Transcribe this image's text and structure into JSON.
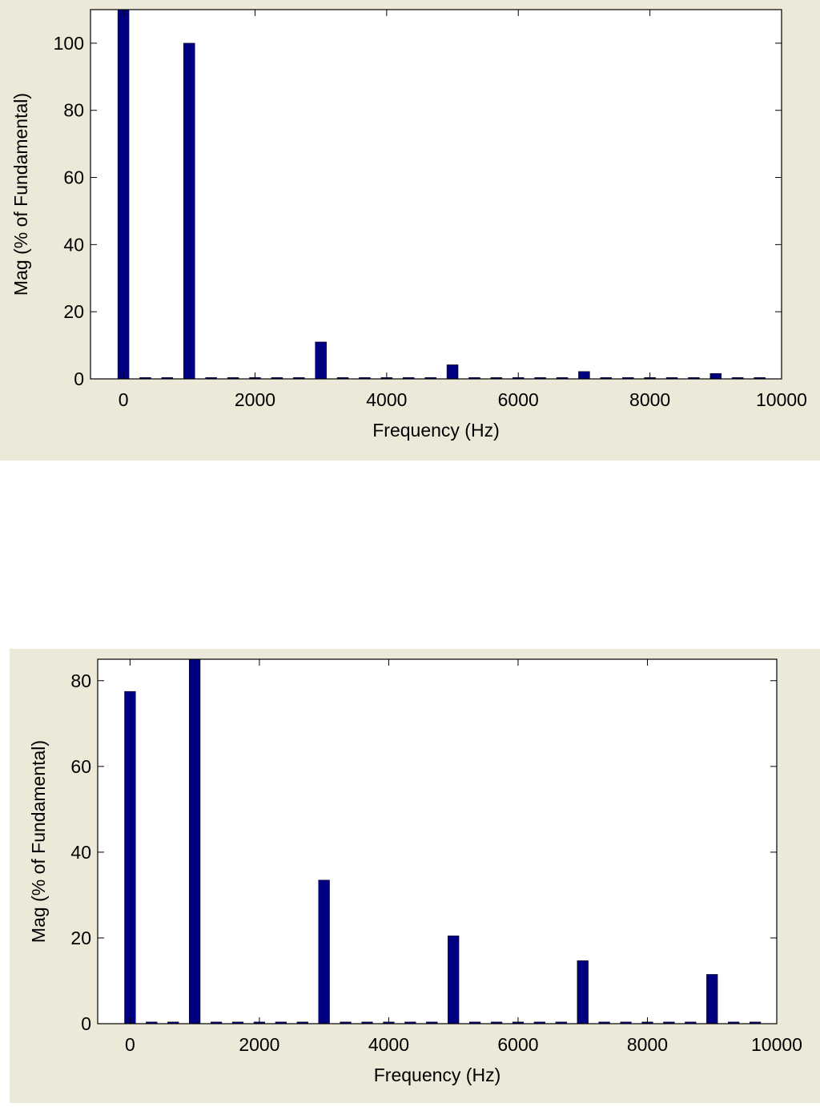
{
  "chart_data": [
    {
      "type": "bar",
      "x_label": "Frequency (Hz)",
      "y_label": "Mag (% of Fundamental)",
      "color": "#000080",
      "x": [
        0,
        333.3,
        666.7,
        1000,
        1333.3,
        1666.7,
        2000,
        2333.3,
        2666.7,
        3000,
        3333.3,
        3666.7,
        4000,
        4333.3,
        4666.7,
        5000,
        5333.3,
        5666.7,
        6000,
        6333.3,
        6666.7,
        7000,
        7333.3,
        7666.7,
        8000,
        8333.3,
        8666.7,
        9000,
        9333.3,
        9666.7
      ],
      "values": [
        110,
        0.4,
        0.4,
        100,
        0.4,
        0.4,
        0.4,
        0.4,
        0.4,
        11,
        0.4,
        0.4,
        0.4,
        0.4,
        0.4,
        4.2,
        0.4,
        0.4,
        0.4,
        0.4,
        0.4,
        2.2,
        0.4,
        0.4,
        0.4,
        0.4,
        0.4,
        1.6,
        0.4,
        0.4
      ],
      "xlim": [
        -500,
        10000
      ],
      "ylim": [
        0,
        110
      ],
      "xticks": [
        0,
        2000,
        4000,
        6000,
        8000,
        10000
      ],
      "yticks": [
        0,
        20,
        40,
        60,
        80,
        100
      ]
    },
    {
      "type": "bar",
      "x_label": "Frequency (Hz)",
      "y_label": "Mag (% of Fundamental)",
      "color": "#000080",
      "x": [
        0,
        333.3,
        666.7,
        1000,
        1333.3,
        1666.7,
        2000,
        2333.3,
        2666.7,
        3000,
        3333.3,
        3666.7,
        4000,
        4333.3,
        4666.7,
        5000,
        5333.3,
        5666.7,
        6000,
        6333.3,
        6666.7,
        7000,
        7333.3,
        7666.7,
        8000,
        8333.3,
        8666.7,
        9000,
        9333.3,
        9666.7
      ],
      "values": [
        77.5,
        0.4,
        0.4,
        85,
        0.4,
        0.4,
        0.4,
        0.4,
        0.4,
        33.5,
        0.4,
        0.4,
        0.4,
        0.4,
        0.4,
        20.5,
        0.4,
        0.4,
        0.4,
        0.4,
        0.4,
        14.7,
        0.4,
        0.4,
        0.4,
        0.4,
        0.4,
        11.5,
        0.4,
        0.4
      ],
      "xlim": [
        -500,
        10000
      ],
      "ylim": [
        0,
        85
      ],
      "xticks": [
        0,
        2000,
        4000,
        6000,
        8000,
        10000
      ],
      "yticks": [
        0,
        20,
        40,
        60,
        80
      ]
    }
  ]
}
